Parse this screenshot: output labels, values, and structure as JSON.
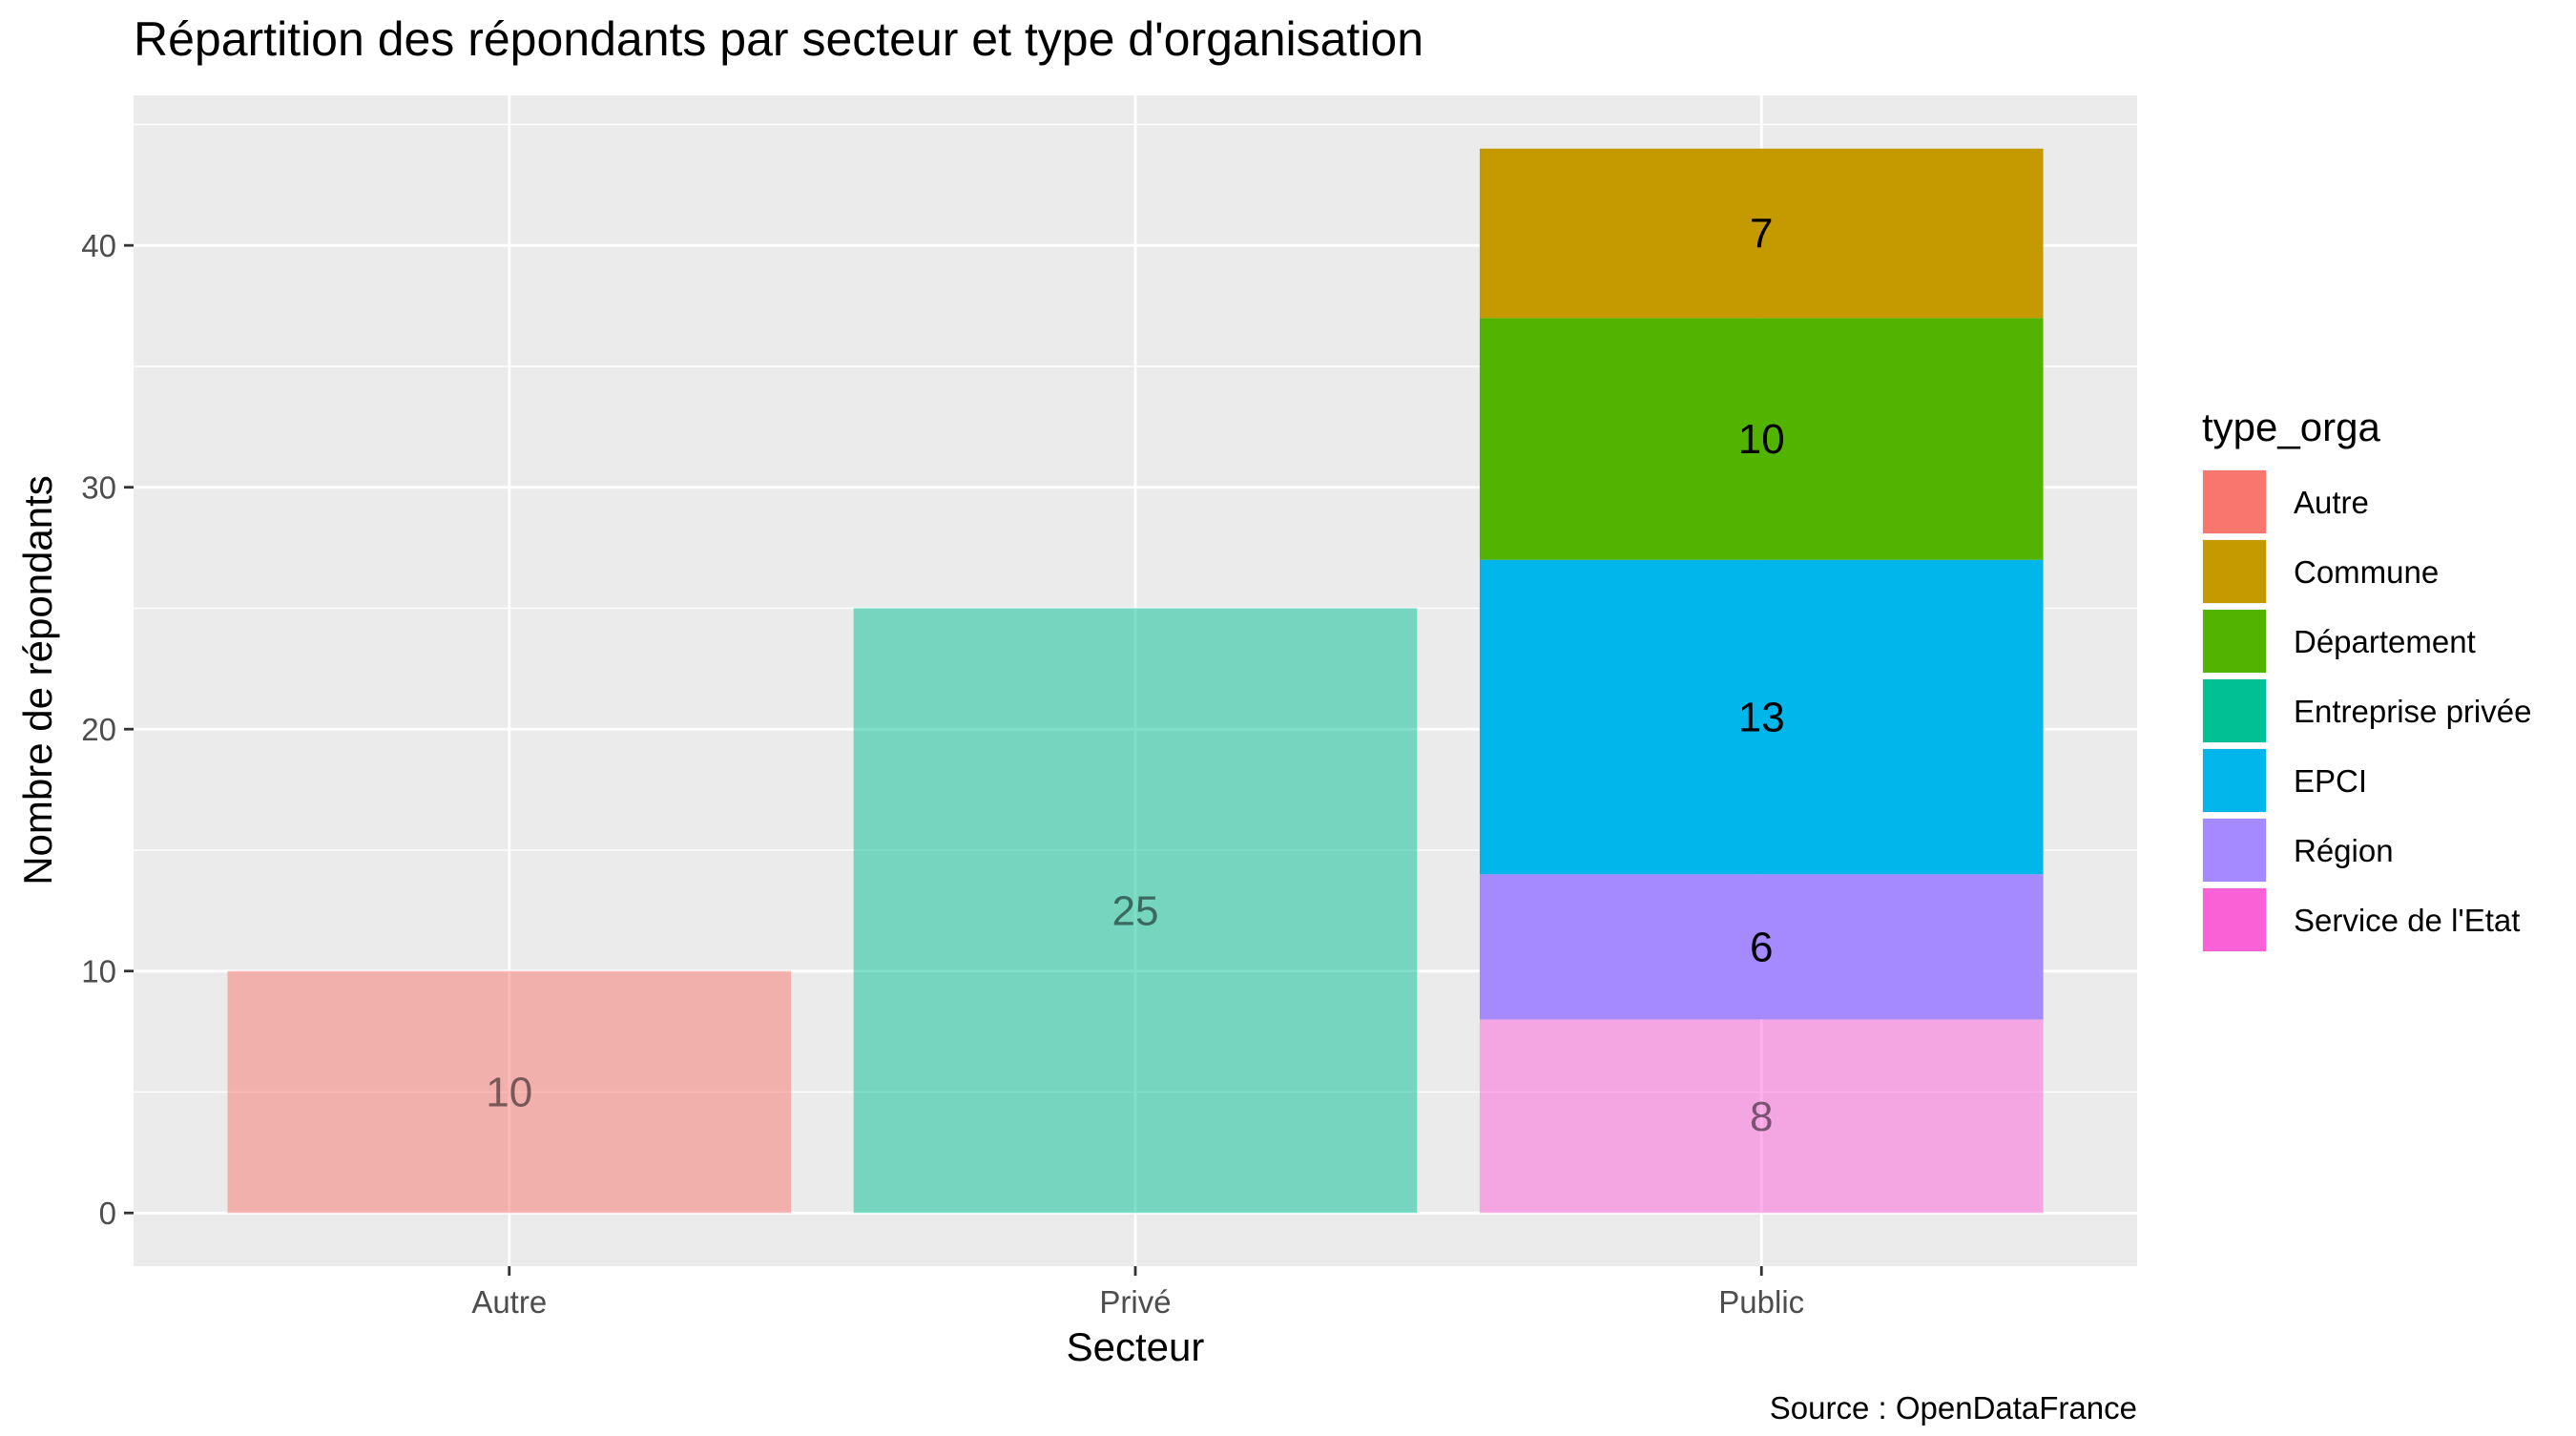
{
  "chart_data": {
    "type": "bar",
    "stacked": true,
    "title": "Répartition des répondants par secteur et type d'organisation",
    "xlabel": "Secteur",
    "ylabel": "Nombre de répondants",
    "caption": "Source : OpenDataFrance",
    "categories": [
      "Autre",
      "Privé",
      "Public"
    ],
    "ylim": [
      -2.2,
      46.2
    ],
    "yticks": [
      0,
      10,
      20,
      30,
      40
    ],
    "ytick_labels": [
      "0",
      "10",
      "20",
      "30",
      "40"
    ],
    "grid": true,
    "legend": {
      "title": "type_orga",
      "position": "right"
    },
    "series": [
      {
        "name": "Autre",
        "color": "#F8766D",
        "values": [
          10,
          0,
          0
        ]
      },
      {
        "name": "Commune",
        "color": "#C49A00",
        "values": [
          0,
          0,
          7
        ]
      },
      {
        "name": "Département",
        "color": "#53B400",
        "values": [
          0,
          0,
          10
        ]
      },
      {
        "name": "Entreprise privée",
        "color": "#00C094",
        "values": [
          0,
          25,
          0
        ]
      },
      {
        "name": "EPCI",
        "color": "#00B6EB",
        "values": [
          0,
          0,
          13
        ]
      },
      {
        "name": "Région",
        "color": "#A58AFF",
        "values": [
          0,
          0,
          6
        ]
      },
      {
        "name": "Service de l'Etat",
        "color": "#FB61D7",
        "values": [
          0,
          0,
          8
        ]
      }
    ],
    "stack_order": {
      "Autre": [
        "Autre"
      ],
      "Privé": [
        "Entreprise privée"
      ],
      "Public": [
        "Service de l'Etat",
        "Région",
        "EPCI",
        "Département",
        "Commune"
      ]
    },
    "bar_labels": [
      {
        "category": "Autre",
        "series": "Autre",
        "text": "10"
      },
      {
        "category": "Privé",
        "series": "Entreprise privée",
        "text": "25"
      },
      {
        "category": "Public",
        "series": "Service de l'Etat",
        "text": "8"
      },
      {
        "category": "Public",
        "series": "Région",
        "text": "6"
      },
      {
        "category": "Public",
        "series": "EPCI",
        "text": "13"
      },
      {
        "category": "Public",
        "series": "Département",
        "text": "10"
      },
      {
        "category": "Public",
        "series": "Commune",
        "text": "7"
      }
    ],
    "faded_series": [
      "Autre",
      "Entreprise privée",
      "Service de l'Etat"
    ],
    "panel_background": "#EBEBEB",
    "grid_color": "#FFFFFF"
  }
}
